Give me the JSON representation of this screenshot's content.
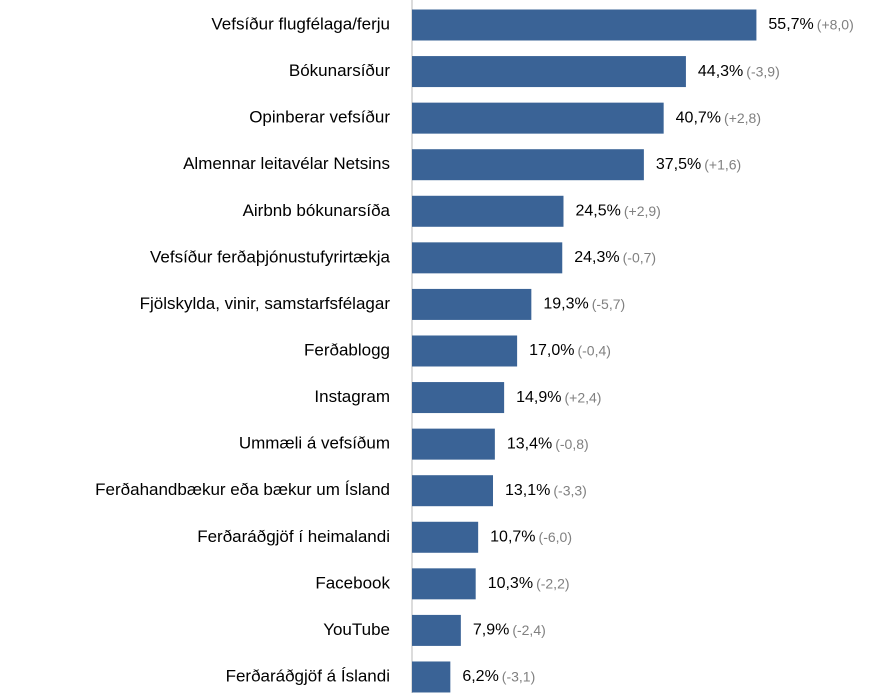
{
  "chart_data": {
    "type": "bar",
    "orientation": "horizontal",
    "color": "#3a6396",
    "categories": [
      "Vefsíður flugfélaga/ferju",
      "Bókunarsíður",
      "Opinberar vefsíður",
      "Almennar leitavélar Netsins",
      "Airbnb bókunarsíða",
      "Vefsíður  ferðaþjónustufyrirtækja",
      "Fjölskylda, vinir, samstarfsfélagar",
      "Ferðablogg",
      "Instagram",
      "Ummæli á vefsíðum",
      "Ferðahandbækur eða bækur um Ísland",
      "Ferðaráðgjöf í heimalandi",
      "Facebook",
      "YouTube",
      "Ferðaráðgjöf á Íslandi"
    ],
    "values": [
      55.7,
      44.3,
      40.7,
      37.5,
      24.5,
      24.3,
      19.3,
      17.0,
      14.9,
      13.4,
      13.1,
      10.7,
      10.3,
      7.9,
      6.2
    ],
    "value_labels": [
      "55,7%",
      "44,3%",
      "40,7%",
      "37,5%",
      "24,5%",
      "24,3%",
      "19,3%",
      "17,0%",
      "14,9%",
      "13,4%",
      "13,1%",
      "10,7%",
      "10,3%",
      "7,9%",
      "6,2%"
    ],
    "changes": [
      8.0,
      -3.9,
      2.8,
      1.6,
      2.9,
      -0.7,
      -5.7,
      -0.4,
      2.4,
      -0.8,
      -3.3,
      -6.0,
      -2.2,
      -2.4,
      -3.1
    ],
    "change_labels": [
      "(+8,0)",
      "(-3,9)",
      "(+2,8)",
      "(+1,6)",
      "(+2,9)",
      "(-0,7)",
      "(-5,7)",
      "(-0,4)",
      "(+2,4)",
      "(-0,8)",
      "(-3,3)",
      "(-6,0)",
      "(-2,2)",
      "(-2,4)",
      "(-3,1)"
    ],
    "xlim": [
      0,
      60
    ]
  }
}
